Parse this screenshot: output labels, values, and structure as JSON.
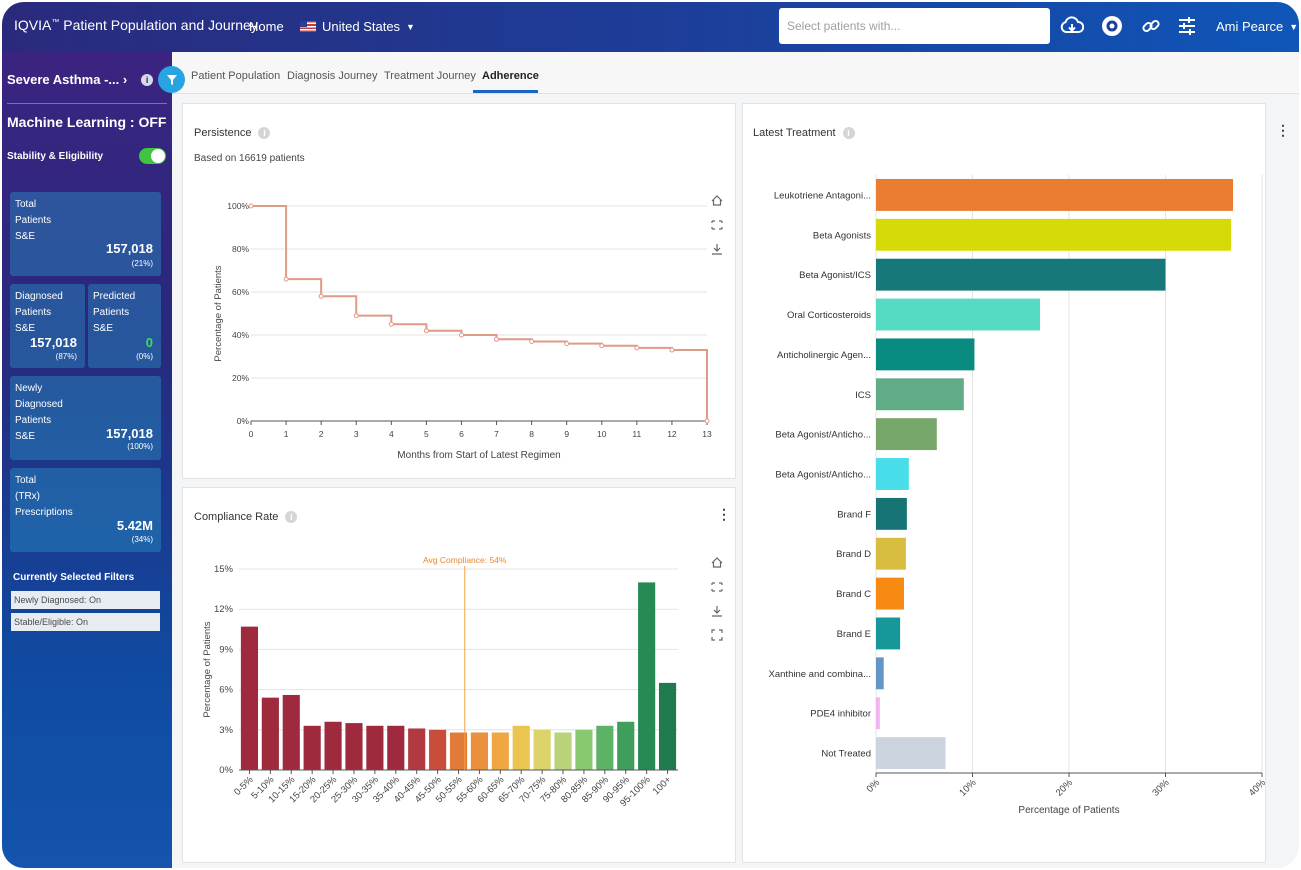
{
  "header": {
    "brand": "IQVIA",
    "brand_tm": "™",
    "app_title": "Patient Population and Journey",
    "nav_home": "Home",
    "country": "United States",
    "search_placeholder": "Select patients with...",
    "user": "Ami Pearce",
    "icons": [
      "cloud-download-icon",
      "eye-icon",
      "link-icon",
      "sliders-icon"
    ]
  },
  "sidebar": {
    "title": "Severe Asthma -... ›",
    "ml_status": "Machine Learning : OFF",
    "stability_label": "Stability & Eligibility",
    "stability_on": true,
    "cards": {
      "total": {
        "label": "Total\nPatients\nS&E",
        "value": "157,018",
        "pct": "(21%)"
      },
      "diagnosed": {
        "label": "Diagnosed\nPatients\nS&E",
        "value": "157,018",
        "pct": "(87%)"
      },
      "predicted": {
        "label": "Predicted\nPatients\nS&E",
        "value": "0",
        "pct": "(0%)"
      },
      "newly": {
        "label": "Newly\nDiagnosed\nPatients\nS&E",
        "value": "157,018",
        "pct": "(100%)"
      },
      "trx": {
        "label": "Total\n(TRx)\nPrescriptions",
        "value": "5.42M",
        "pct": "(34%)"
      }
    },
    "filters_title": "Currently Selected Filters",
    "filters": [
      "Newly Diagnosed: On",
      "Stable/Eligible: On"
    ]
  },
  "tabs": [
    {
      "label": "Patient Population",
      "active": false
    },
    {
      "label": "Diagnosis Journey",
      "active": false
    },
    {
      "label": "Treatment Journey",
      "active": false
    },
    {
      "label": "Adherence",
      "active": true
    }
  ],
  "colors": {
    "accent": "#1a64c8",
    "persistence_line": "#e29a86",
    "avg_line": "#f5a042",
    "avg_label": "#e8892b"
  },
  "panels": {
    "persistence": {
      "title": "Persistence",
      "subtitle": "Based on 16619 patients"
    },
    "compliance": {
      "title": "Compliance Rate"
    },
    "latest": {
      "title": "Latest Treatment"
    }
  },
  "chart_data": [
    {
      "type": "line",
      "title": "Persistence",
      "subtitle": "Based on 16619 patients",
      "xlabel": "Months from Start of Latest Regimen",
      "ylabel": "Percentage of Patients",
      "x": [
        0,
        1,
        2,
        3,
        4,
        5,
        6,
        7,
        8,
        9,
        10,
        11,
        12,
        13
      ],
      "series": [
        {
          "values": [
            100,
            66,
            58,
            49,
            45,
            42,
            40,
            38,
            37,
            36,
            35,
            34,
            33,
            0
          ]
        }
      ],
      "xlim": [
        0,
        13
      ],
      "ylim": [
        0,
        100
      ],
      "yticks": [
        "0%",
        "20%",
        "40%",
        "60%",
        "80%",
        "100%"
      ],
      "step": true,
      "grid": true
    },
    {
      "type": "bar",
      "title": "Compliance Rate",
      "ylabel": "Percentage of Patients",
      "categories": [
        "0-5%",
        "5-10%",
        "10-15%",
        "15-20%",
        "20-25%",
        "25-30%",
        "30-35%",
        "35-40%",
        "40-45%",
        "45-50%",
        "50-55%",
        "55-60%",
        "60-65%",
        "65-70%",
        "70-75%",
        "75-80%",
        "80-85%",
        "85-90%",
        "90-95%",
        "95-100%",
        "100+"
      ],
      "values": [
        10.7,
        5.4,
        5.6,
        3.3,
        3.6,
        3.5,
        3.3,
        3.3,
        3.1,
        3.0,
        2.8,
        2.8,
        2.8,
        3.3,
        3.0,
        2.8,
        3.0,
        3.3,
        3.6,
        14.0,
        6.5
      ],
      "colors": [
        "#9f2a3e",
        "#9f2a3e",
        "#9f2a3e",
        "#9f2a3e",
        "#9f2a3e",
        "#9f2a3e",
        "#9f2a3e",
        "#9f2a3e",
        "#b03a3f",
        "#c94d3b",
        "#e07c38",
        "#ea8f3c",
        "#efa743",
        "#ecc551",
        "#dcd46a",
        "#b9d37a",
        "#88c86f",
        "#5db365",
        "#3f9e5c",
        "#278a54",
        "#1f7a4e"
      ],
      "ylim": [
        0,
        15
      ],
      "yticks": [
        "0%",
        "3%",
        "6%",
        "9%",
        "12%",
        "15%"
      ],
      "annotation": {
        "label": "Avg Compliance: 54%",
        "x": 54
      },
      "grid": true
    },
    {
      "type": "bar",
      "orientation": "horizontal",
      "title": "Latest Treatment",
      "xlabel": "Percentage of Patients",
      "categories": [
        "Leukotriene Antagoni...",
        "Beta Agonists",
        "Beta Agonist/ICS",
        "Oral Corticosteroids",
        "Anticholinergic Agen...",
        "ICS",
        "Beta Agonist/Anticho...",
        "Beta Agonist/Anticho...",
        "Brand F",
        "Brand D",
        "Brand C",
        "Brand E",
        "Xanthine and combina...",
        "PDE4 inhibitor",
        "Not Treated"
      ],
      "values": [
        37,
        36.8,
        30,
        17,
        10.2,
        9.1,
        6.3,
        3.4,
        3.2,
        3.1,
        2.9,
        2.5,
        0.8,
        0.4,
        7.2
      ],
      "colors": [
        "#ea7d31",
        "#d6da07",
        "#177879",
        "#55dac3",
        "#0a8b80",
        "#5fac86",
        "#76a66a",
        "#48dde9",
        "#167574",
        "#d9bd41",
        "#f68a12",
        "#18979a",
        "#6395c7",
        "#f3b5f2",
        "#ccd5df"
      ],
      "xlim": [
        0,
        40
      ],
      "xticks": [
        "0%",
        "10%",
        "20%",
        "30%",
        "40%"
      ],
      "grid": true
    }
  ]
}
